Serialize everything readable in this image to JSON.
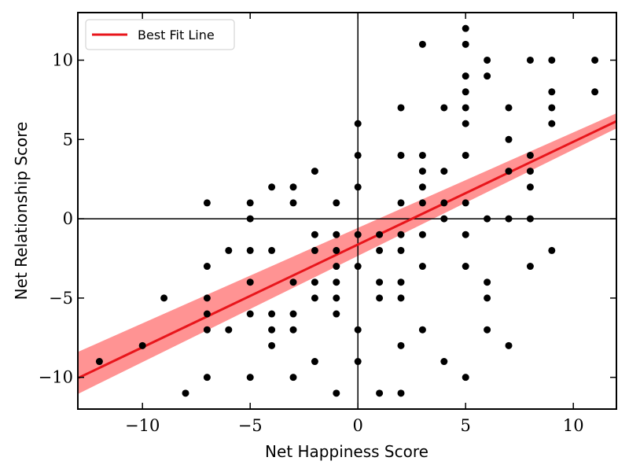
{
  "chart_data": {
    "type": "scatter",
    "xlabel": "Net Happiness Score",
    "ylabel": "Net Relationship Score",
    "xlim": [
      -13,
      12
    ],
    "ylim": [
      -12,
      13
    ],
    "xticks": [
      -10,
      -5,
      0,
      5,
      10
    ],
    "yticks": [
      -10,
      -5,
      0,
      5,
      10
    ],
    "xtick_labels": [
      "−10",
      "−5",
      "0",
      "5",
      "10"
    ],
    "ytick_labels": [
      "−10",
      "−5",
      "0",
      "5",
      "10"
    ],
    "grid": false,
    "legend_position": "top-left",
    "zero_lines": true,
    "colors": {
      "points": "#000000",
      "fit_line": "#e8151b",
      "confidence_band": "#ff8080"
    },
    "series": [
      {
        "type": "scatter",
        "points": [
          [
            -12,
            -9
          ],
          [
            -10,
            -8
          ],
          [
            -9,
            -5
          ],
          [
            -8,
            -11
          ],
          [
            -7,
            1
          ],
          [
            -7,
            -3
          ],
          [
            -7,
            -5
          ],
          [
            -7,
            -6
          ],
          [
            -7,
            -7
          ],
          [
            -7,
            -10
          ],
          [
            -6,
            -2
          ],
          [
            -6,
            -7
          ],
          [
            -5,
            1
          ],
          [
            -5,
            0
          ],
          [
            -5,
            -2
          ],
          [
            -5,
            -4
          ],
          [
            -5,
            -6
          ],
          [
            -5,
            -10
          ],
          [
            -4,
            2
          ],
          [
            -4,
            -2
          ],
          [
            -4,
            -6
          ],
          [
            -4,
            -7
          ],
          [
            -4,
            -8
          ],
          [
            -3,
            2
          ],
          [
            -3,
            1
          ],
          [
            -3,
            -4
          ],
          [
            -3,
            -6
          ],
          [
            -3,
            -7
          ],
          [
            -3,
            -10
          ],
          [
            -2,
            3
          ],
          [
            -2,
            -1
          ],
          [
            -2,
            -2
          ],
          [
            -2,
            -4
          ],
          [
            -2,
            -5
          ],
          [
            -2,
            -9
          ],
          [
            -1,
            1
          ],
          [
            -1,
            -1
          ],
          [
            -1,
            -2
          ],
          [
            -1,
            -3
          ],
          [
            -1,
            -4
          ],
          [
            -1,
            -5
          ],
          [
            -1,
            -6
          ],
          [
            -1,
            -11
          ],
          [
            0,
            6
          ],
          [
            0,
            4
          ],
          [
            0,
            2
          ],
          [
            0,
            -1
          ],
          [
            0,
            -3
          ],
          [
            0,
            -7
          ],
          [
            0,
            -9
          ],
          [
            1,
            -1
          ],
          [
            1,
            -2
          ],
          [
            1,
            -4
          ],
          [
            1,
            -5
          ],
          [
            1,
            -11
          ],
          [
            2,
            7
          ],
          [
            2,
            4
          ],
          [
            2,
            1
          ],
          [
            2,
            -1
          ],
          [
            2,
            -2
          ],
          [
            2,
            -4
          ],
          [
            2,
            -5
          ],
          [
            2,
            -8
          ],
          [
            2,
            -11
          ],
          [
            3,
            11
          ],
          [
            3,
            4
          ],
          [
            3,
            3
          ],
          [
            3,
            2
          ],
          [
            3,
            1
          ],
          [
            3,
            -1
          ],
          [
            3,
            -3
          ],
          [
            3,
            -7
          ],
          [
            4,
            7
          ],
          [
            4,
            3
          ],
          [
            4,
            1
          ],
          [
            4,
            0
          ],
          [
            4,
            -9
          ],
          [
            5,
            12
          ],
          [
            5,
            11
          ],
          [
            5,
            9
          ],
          [
            5,
            8
          ],
          [
            5,
            7
          ],
          [
            5,
            6
          ],
          [
            5,
            4
          ],
          [
            5,
            1
          ],
          [
            5,
            -1
          ],
          [
            5,
            -3
          ],
          [
            5,
            -10
          ],
          [
            6,
            10
          ],
          [
            6,
            9
          ],
          [
            6,
            0
          ],
          [
            6,
            -4
          ],
          [
            6,
            -5
          ],
          [
            6,
            -7
          ],
          [
            7,
            7
          ],
          [
            7,
            5
          ],
          [
            7,
            3
          ],
          [
            7,
            0
          ],
          [
            7,
            -8
          ],
          [
            8,
            10
          ],
          [
            8,
            4
          ],
          [
            8,
            3
          ],
          [
            8,
            2
          ],
          [
            8,
            0
          ],
          [
            8,
            -3
          ],
          [
            9,
            10
          ],
          [
            9,
            8
          ],
          [
            9,
            7
          ],
          [
            9,
            6
          ],
          [
            9,
            -2
          ],
          [
            11,
            10
          ],
          [
            11,
            8
          ]
        ]
      },
      {
        "name": "Best Fit Line",
        "type": "line",
        "x": [
          -13,
          12
        ],
        "y": [
          -10.05,
          6.15
        ],
        "band_lower": [
          -11.05,
          5.7
        ],
        "band_upper": [
          -8.4,
          6.65
        ]
      }
    ]
  }
}
